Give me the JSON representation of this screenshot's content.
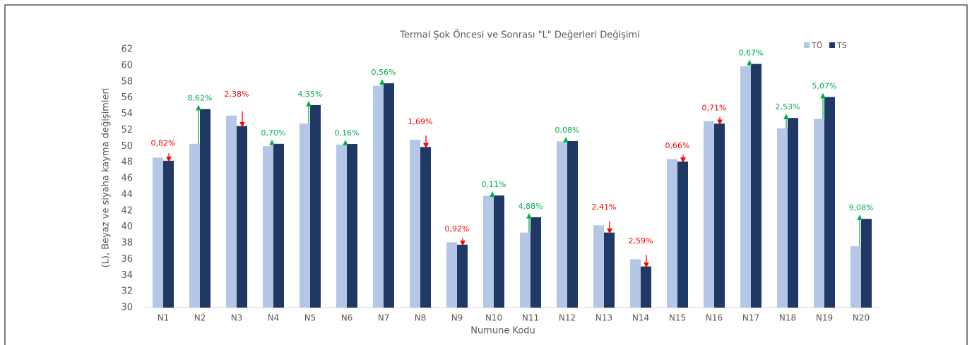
{
  "chart_data": {
    "type": "bar",
    "title": "Termal Şok Öncesi ve Sonrası \"L\" Değerleri Değişimi",
    "x_label": "Numune Kodu",
    "y_label": "(L), Beyaz  ve siyaha kayma değişimleri",
    "categories": [
      "N1",
      "N2",
      "N3",
      "N4",
      "N5",
      "N6",
      "N7",
      "N8",
      "N9",
      "N10",
      "N11",
      "N12",
      "N13",
      "N14",
      "N15",
      "N16",
      "N17",
      "N18",
      "N19",
      "N20"
    ],
    "series": [
      {
        "name": "TÖ",
        "color": "#b4c7e7",
        "values": [
          48.6,
          50.3,
          53.8,
          50.0,
          52.8,
          50.2,
          57.5,
          50.8,
          38.1,
          43.85,
          39.3,
          50.6,
          40.2,
          36.0,
          48.4,
          53.1,
          59.9,
          52.2,
          53.4,
          37.6
        ]
      },
      {
        "name": "TS",
        "color": "#203864",
        "values": [
          48.2,
          54.6,
          52.5,
          50.3,
          55.1,
          50.28,
          57.8,
          49.9,
          37.8,
          43.9,
          41.2,
          50.64,
          39.3,
          35.1,
          48.1,
          52.8,
          60.2,
          53.5,
          56.1,
          41.0
        ]
      }
    ],
    "annotations": [
      "0,82%",
      "8,62%",
      "2,38%",
      "0,70%",
      "4,35%",
      "0,16%",
      "0,56%",
      "1,69%",
      "0,92%",
      "0,11%",
      "4,88%",
      "0,08%",
      "2,41%",
      "2,59%",
      "0,66%",
      "0,71%",
      "0,67%",
      "2,53%",
      "5,07%",
      "9,08%"
    ],
    "annotation_colors": {
      "increase": "#00b050",
      "decrease": "#ff0000"
    },
    "ylim": [
      30,
      62
    ],
    "yticks": [
      30,
      32,
      34,
      36,
      38,
      40,
      42,
      44,
      46,
      48,
      50,
      52,
      54,
      56,
      58,
      60,
      62
    ],
    "legend": "top-right"
  }
}
